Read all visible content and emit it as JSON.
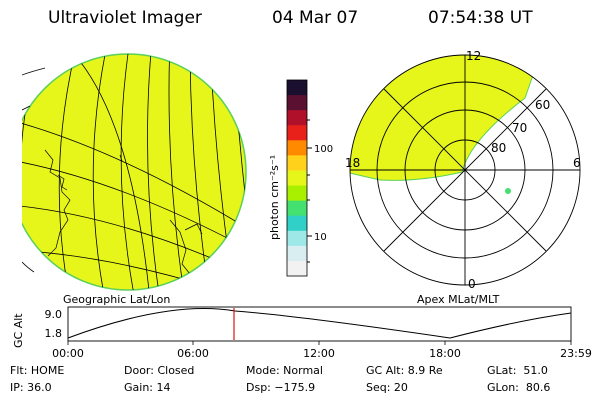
{
  "header": {
    "instrument": "Ultraviolet Imager",
    "date": "04 Mar 07",
    "time": "07:54:38 UT"
  },
  "left_map": {
    "caption": "Geographic Lat/Lon"
  },
  "colorbar": {
    "unit_label": "photon cm⁻²s⁻¹",
    "tick_labels": [
      "100",
      "10"
    ],
    "colors": [
      "#1a0f2e",
      "#5a1030",
      "#b0102a",
      "#e8221a",
      "#ff8a00",
      "#ffd11a",
      "#e6f51a",
      "#a8f000",
      "#44e070",
      "#30d0c8",
      "#9ee8e8",
      "#d8eef0",
      "#f2f2f2"
    ]
  },
  "right_map": {
    "caption": "Apex MLat/MLT",
    "mlt_labels": [
      "12",
      "18",
      "6",
      "0"
    ],
    "mlat_labels": [
      "60",
      "70",
      "80"
    ]
  },
  "orbit_plot": {
    "ylabel": "GC Alt",
    "y_ticks": [
      "9.0",
      "1.8"
    ],
    "x_ticks": [
      "00:00",
      "06:00",
      "12:00",
      "18:00",
      "23:59"
    ],
    "current_time_fraction": 0.33
  },
  "status": {
    "row1": [
      "Flt: HOME",
      "Door: Closed",
      "Mode: Normal",
      "GC Alt: 8.9 Re",
      "GLat:  51.0"
    ],
    "row2": [
      "IP: 36.0",
      "Gain: 14",
      "Dsp: −175.9",
      "Seq: 20",
      "GLon:  80.6"
    ]
  },
  "colors": {
    "image_fill": "#e6f51a",
    "disk_edge": "#5ad05a",
    "cursor_line": "#e01010",
    "spot": "#44e070"
  }
}
